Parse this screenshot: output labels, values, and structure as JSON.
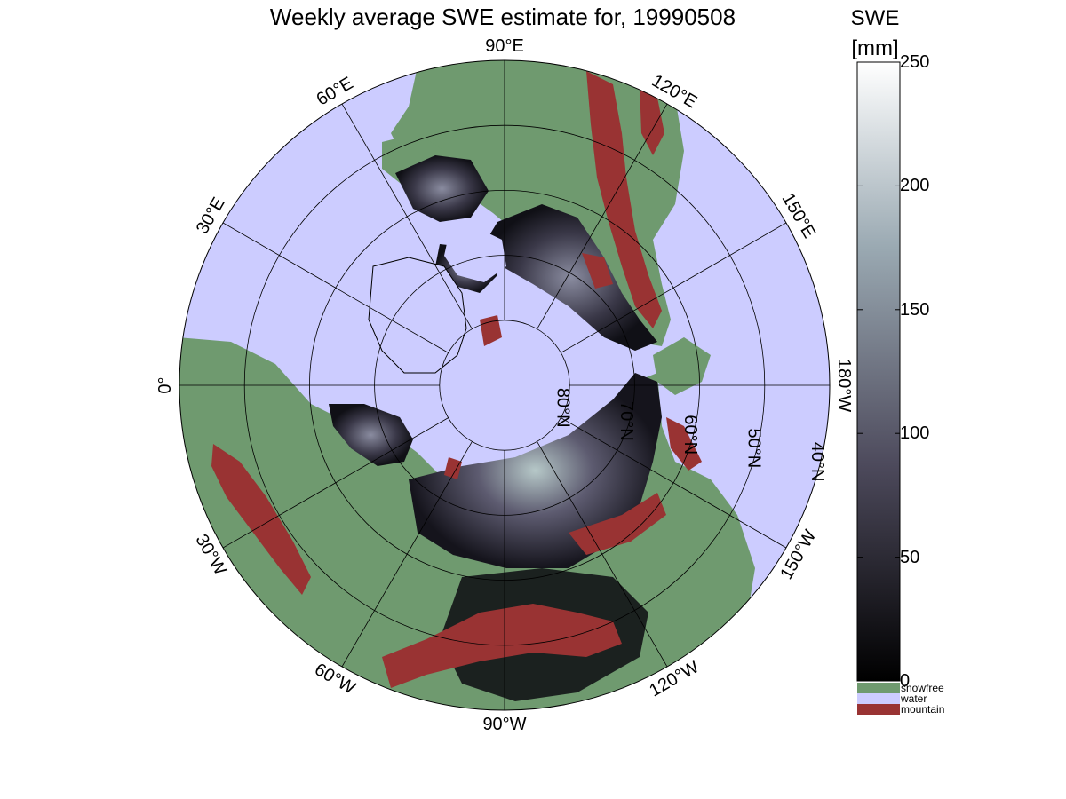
{
  "title": "Weekly average SWE estimate for, 19990508",
  "colorbar": {
    "title_line1": "SWE",
    "title_line2": "[mm]",
    "min": 0,
    "max": 250,
    "ticks": [
      "0",
      "50",
      "100",
      "150",
      "200",
      "250"
    ],
    "colors": [
      "#000000",
      "#4d4a5c",
      "#9aa9b2",
      "#ffffff"
    ]
  },
  "legend": [
    {
      "label": "snowfree",
      "color": "#6f9a6f"
    },
    {
      "label": "water",
      "color": "#ccccff"
    },
    {
      "label": "mountain",
      "color": "#993333"
    }
  ],
  "map": {
    "projection": "polar-stereographic-north",
    "colors": {
      "water": "#ccccff",
      "snowfree": "#6f9a6f",
      "mountain": "#993333",
      "grid": "#000000"
    },
    "longitude_labels": [
      {
        "text": "90°W",
        "lon": -90
      },
      {
        "text": "120°W",
        "lon": -120
      },
      {
        "text": "150°W",
        "lon": -150
      },
      {
        "text": "180°W",
        "lon": 180
      },
      {
        "text": "150°E",
        "lon": 150
      },
      {
        "text": "120°E",
        "lon": 120
      },
      {
        "text": "90°E",
        "lon": 90
      },
      {
        "text": "60°E",
        "lon": 60
      },
      {
        "text": "30°E",
        "lon": 30
      },
      {
        "text": "0°",
        "lon": 0
      },
      {
        "text": "30°W",
        "lon": -30
      },
      {
        "text": "60°W",
        "lon": -60
      }
    ],
    "latitude_labels": [
      {
        "text": "80°N",
        "lat": 80
      },
      {
        "text": "70°N",
        "lat": 70
      },
      {
        "text": "60°N",
        "lat": 60
      },
      {
        "text": "50°N",
        "lat": 50
      },
      {
        "text": "40°N",
        "lat": 40
      }
    ]
  }
}
